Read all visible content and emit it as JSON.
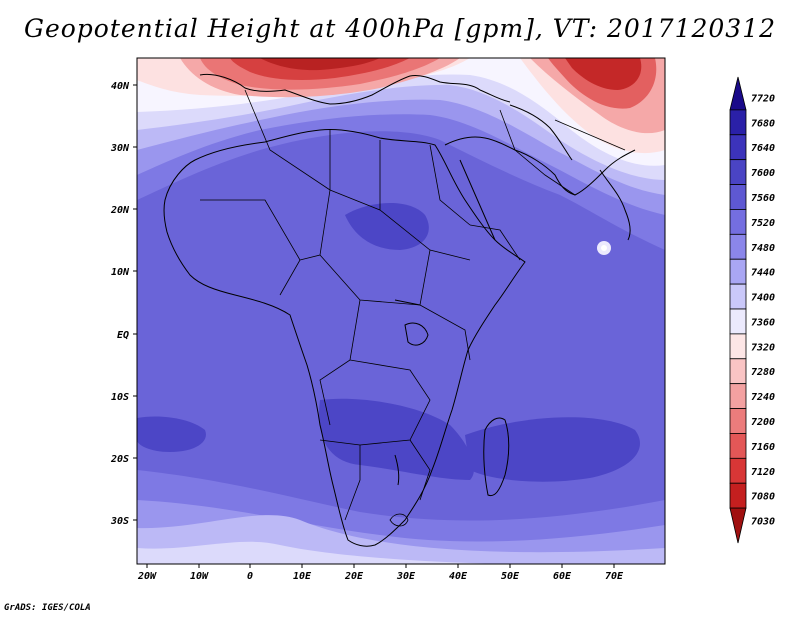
{
  "title": "Geopotential Height at 400hPa [gpm], VT: 2017120312",
  "footer": "GrADS: IGES/COLA",
  "axes": {
    "lon_labels": [
      "20W",
      "10W",
      "0",
      "10E",
      "20E",
      "30E",
      "40E",
      "50E",
      "60E",
      "70E"
    ],
    "lat_labels": [
      "40N",
      "30N",
      "20N",
      "10N",
      "EQ",
      "10S",
      "20S",
      "30S"
    ]
  },
  "colorbar": {
    "levels": [
      "7720",
      "7680",
      "7640",
      "7600",
      "7560",
      "7520",
      "7480",
      "7440",
      "7400",
      "7360",
      "7320",
      "7280",
      "7240",
      "7200",
      "7160",
      "7120",
      "7080",
      "7030"
    ],
    "colors": [
      "#1a0a8a",
      "#2a20a8",
      "#3c33bb",
      "#4a44c4",
      "#5e58d2",
      "#746ee0",
      "#8b86ea",
      "#a9a6f3",
      "#cac8f9",
      "#eceafd",
      "#fde6e6",
      "#f9c4c4",
      "#f3a1a1",
      "#ec7c7c",
      "#e35757",
      "#d83636",
      "#c41f1f",
      "#a01010"
    ]
  }
}
